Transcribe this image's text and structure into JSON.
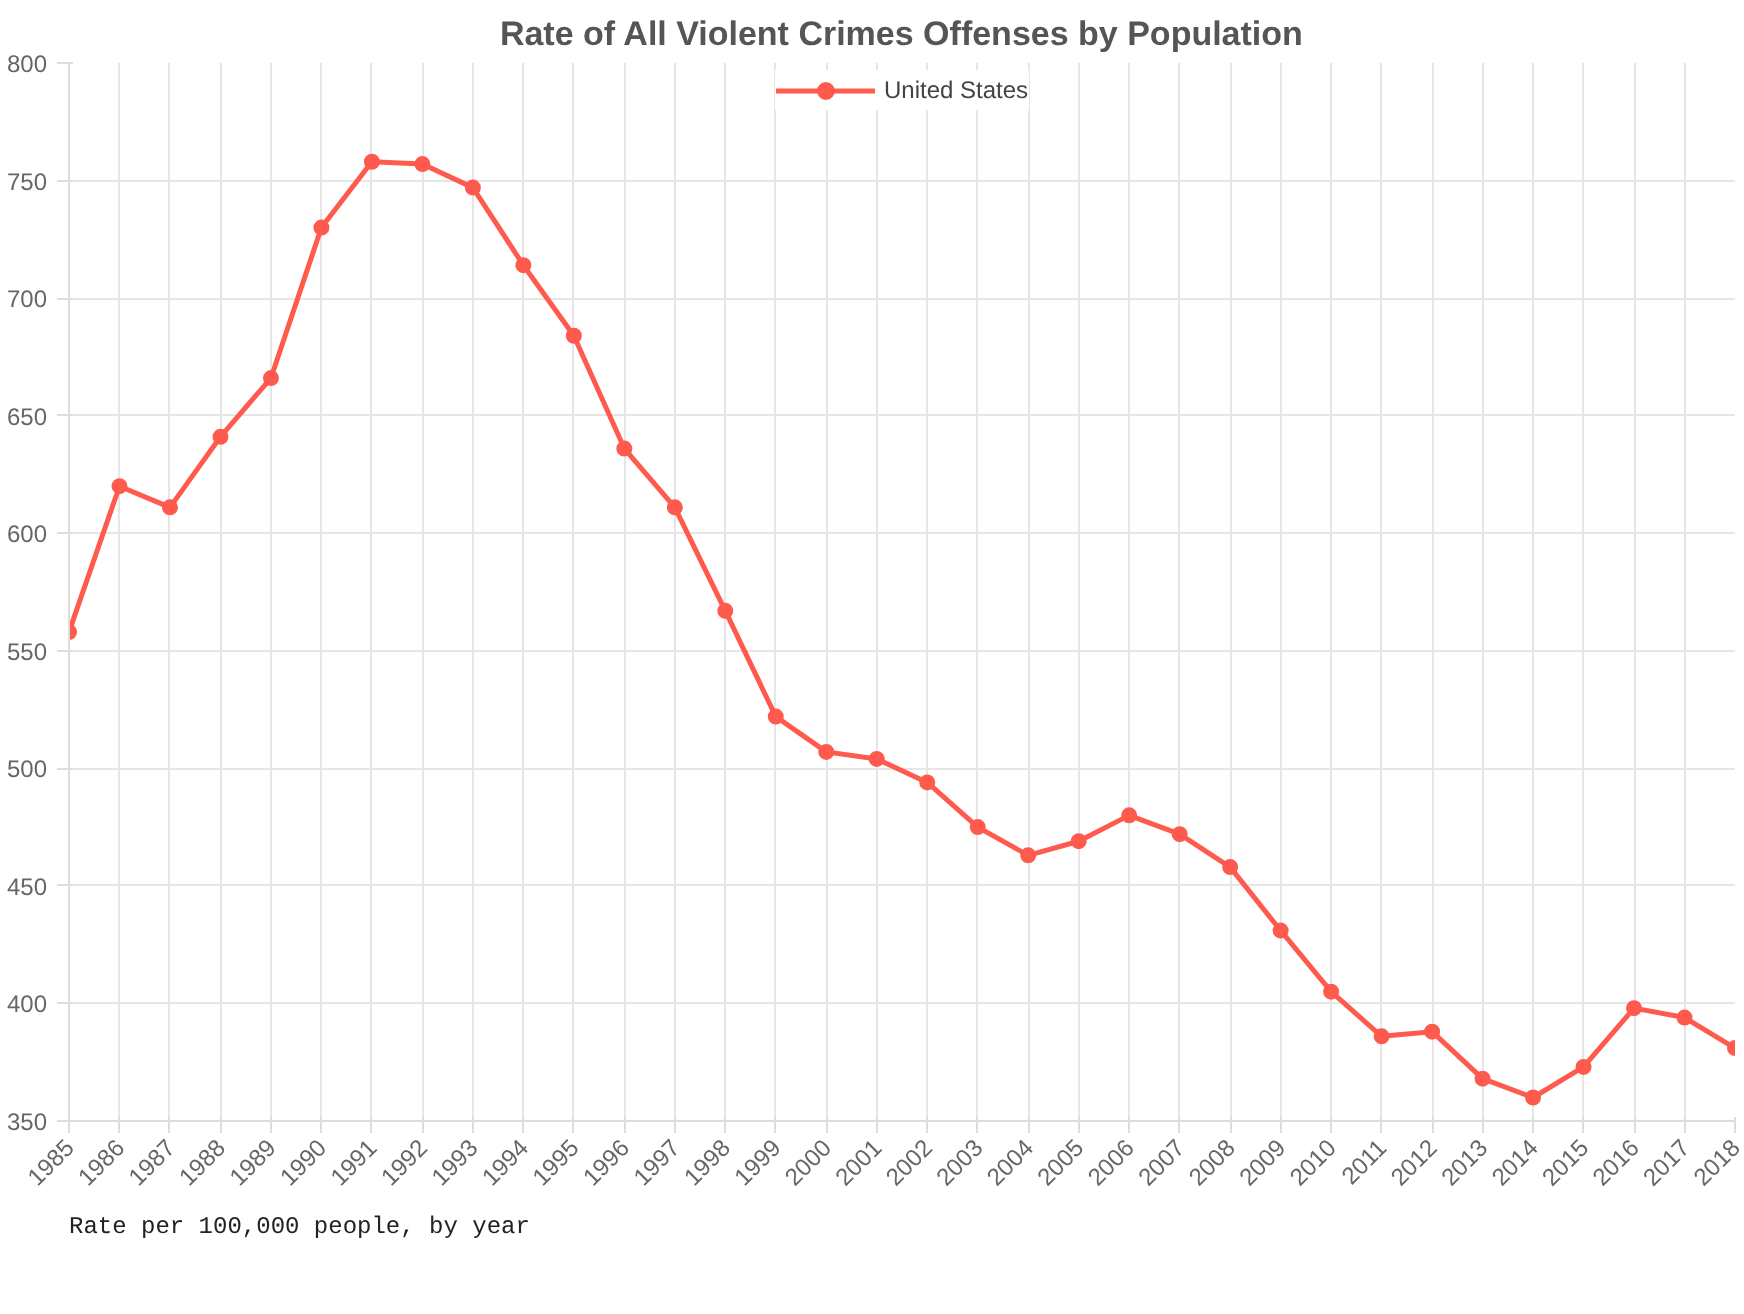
{
  "chart_data": {
    "type": "line",
    "title": "Rate of All Violent Crimes Offenses by Population",
    "categories": [
      "1985",
      "1986",
      "1987",
      "1988",
      "1989",
      "1990",
      "1991",
      "1992",
      "1993",
      "1994",
      "1995",
      "1996",
      "1997",
      "1998",
      "1999",
      "2000",
      "2001",
      "2002",
      "2003",
      "2004",
      "2005",
      "2006",
      "2007",
      "2008",
      "2009",
      "2010",
      "2011",
      "2012",
      "2013",
      "2014",
      "2015",
      "2016",
      "2017",
      "2018"
    ],
    "series": [
      {
        "name": "United States",
        "color": "#ff5a4e",
        "values": [
          558,
          620,
          611,
          641,
          666,
          730,
          758,
          757,
          747,
          714,
          684,
          636,
          611,
          567,
          522,
          507,
          504,
          494,
          475,
          463,
          469,
          480,
          472,
          458,
          431,
          405,
          386,
          388,
          368,
          360,
          373,
          398,
          394,
          381
        ]
      }
    ],
    "ylim": [
      350,
      800
    ],
    "yticks": [
      350,
      400,
      450,
      500,
      550,
      600,
      650,
      700,
      750,
      800
    ],
    "grid": true,
    "legend": "top",
    "marker": "circle",
    "line_style": "solid",
    "annotations": [
      "Rate per 100,000 people, by year"
    ]
  }
}
